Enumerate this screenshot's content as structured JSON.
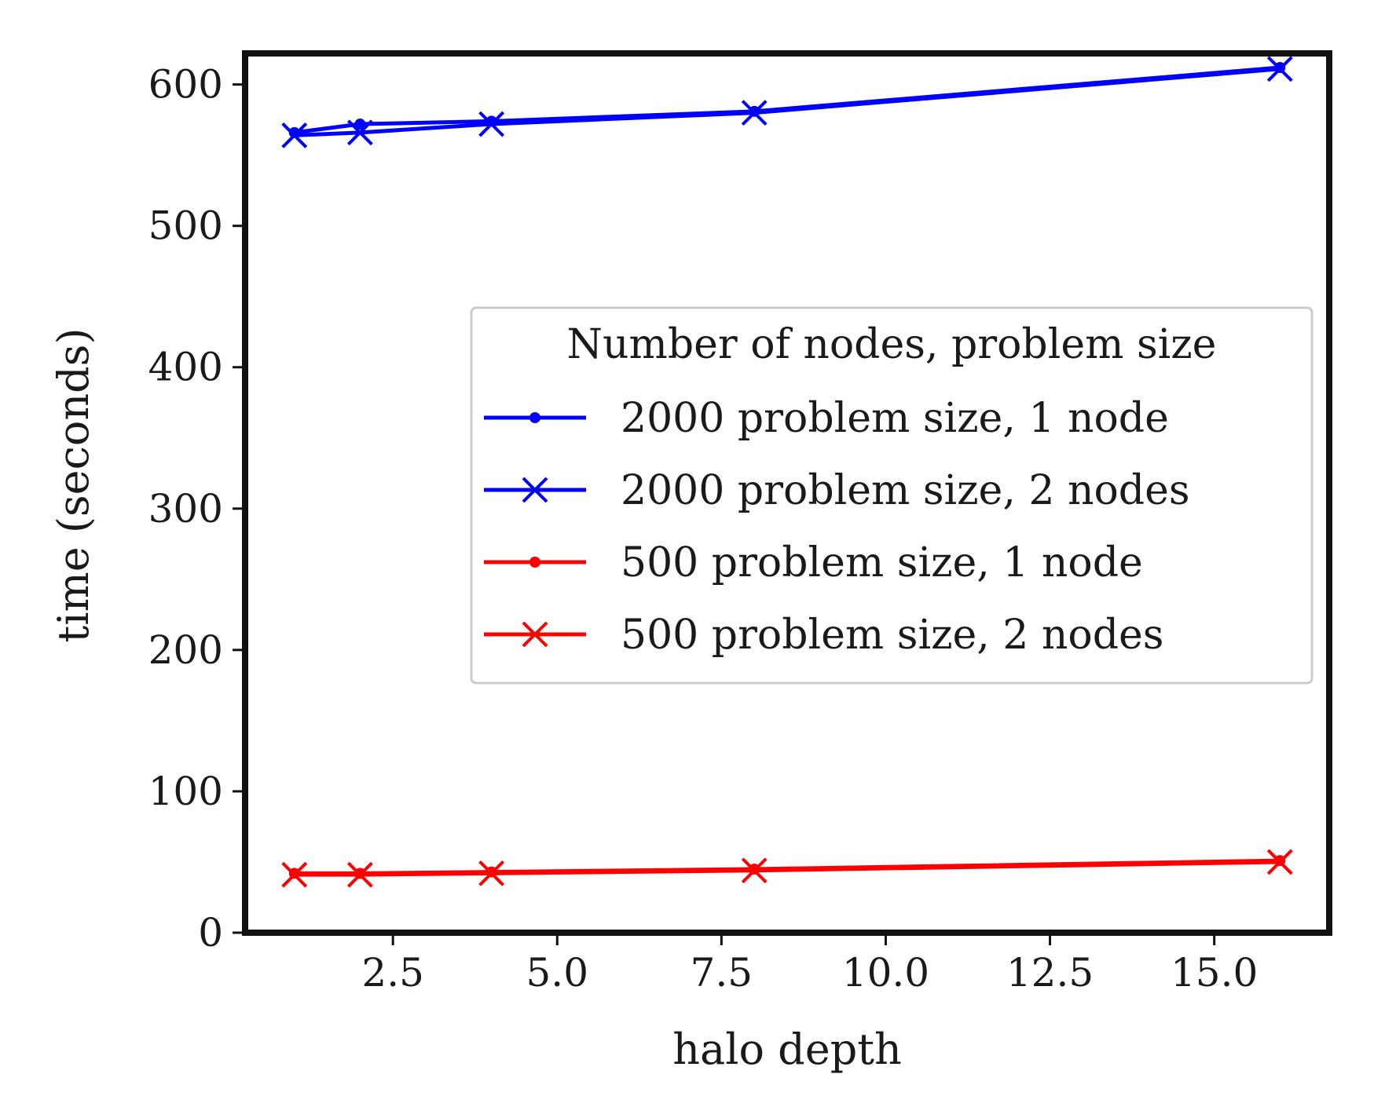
{
  "chart_data": {
    "type": "line",
    "title": "",
    "xlabel": "halo depth",
    "ylabel": "time (seconds)",
    "xlim": [
      0.25,
      16.75
    ],
    "ylim": [
      0,
      622
    ],
    "x_ticks": [
      2.5,
      5.0,
      7.5,
      10.0,
      12.5,
      15.0
    ],
    "x_tick_labels": [
      "2.5",
      "5.0",
      "7.5",
      "10.0",
      "12.5",
      "15.0"
    ],
    "y_ticks": [
      0,
      100,
      200,
      300,
      400,
      500,
      600
    ],
    "y_tick_labels": [
      "0",
      "100",
      "200",
      "300",
      "400",
      "500",
      "600"
    ],
    "x": [
      1,
      2,
      4,
      8,
      16
    ],
    "legend_title": "Number of nodes, problem size",
    "legend_position": "center-right",
    "series": [
      {
        "name": "2000 problem size, 1 node",
        "color": "#0000ff",
        "marker": "dot",
        "values": [
          566,
          572,
          574,
          581,
          612
        ]
      },
      {
        "name": "2000 problem size, 2 nodes",
        "color": "#0000ff",
        "marker": "x",
        "values": [
          564,
          566,
          572,
          580,
          611
        ]
      },
      {
        "name": "500 problem size, 1 node",
        "color": "#ff0000",
        "marker": "dot",
        "values": [
          42,
          42,
          43,
          45,
          51
        ]
      },
      {
        "name": "500 problem size, 2 nodes",
        "color": "#ff0000",
        "marker": "x",
        "values": [
          41,
          41,
          42,
          44,
          50
        ]
      }
    ]
  }
}
